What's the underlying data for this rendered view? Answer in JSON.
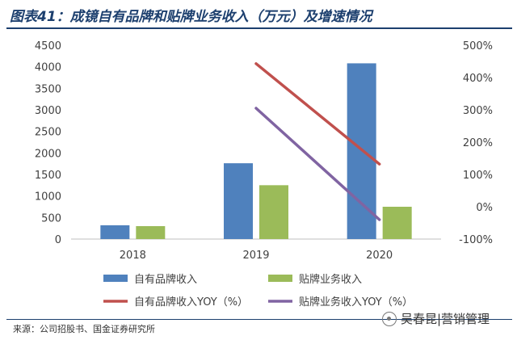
{
  "title": "图表41：成镜自有品牌和贴牌业务收入（万元）及增速情况",
  "source": "来源：公司招股书、国金证券研究所",
  "watermark": "吴春昆|营销管理",
  "colors": {
    "bar_own": "#4f81bd",
    "bar_oem": "#9bbb59",
    "line_own": "#c0504d",
    "line_oem": "#8064a2",
    "title": "#1c3f6e"
  },
  "chart_data": {
    "type": "bar",
    "categories": [
      "2018",
      "2019",
      "2020"
    ],
    "series": [
      {
        "name": "自有品牌收入",
        "kind": "bar",
        "axis": "left",
        "color": "#4f81bd",
        "values": [
          320,
          1760,
          4080
        ]
      },
      {
        "name": "贴牌业务收入",
        "kind": "bar",
        "axis": "left",
        "color": "#9bbb59",
        "values": [
          300,
          1250,
          750
        ]
      },
      {
        "name": "自有品牌收入YOY（%）",
        "kind": "line",
        "axis": "right",
        "color": "#c0504d",
        "values": [
          null,
          443,
          132
        ]
      },
      {
        "name": "贴牌业务收入YOY（%）",
        "kind": "line",
        "axis": "right",
        "color": "#8064a2",
        "values": [
          null,
          305,
          -40
        ]
      }
    ],
    "left_axis": {
      "min": 0,
      "max": 4500,
      "ticks": [
        "0",
        "500",
        "1000",
        "1500",
        "2000",
        "2500",
        "3000",
        "3500",
        "4000",
        "4500"
      ]
    },
    "right_axis": {
      "min": -100,
      "max": 500,
      "ticks": [
        "-100%",
        "0%",
        "100%",
        "200%",
        "300%",
        "400%",
        "500%"
      ]
    },
    "grid": false,
    "legend_position": "bottom"
  }
}
